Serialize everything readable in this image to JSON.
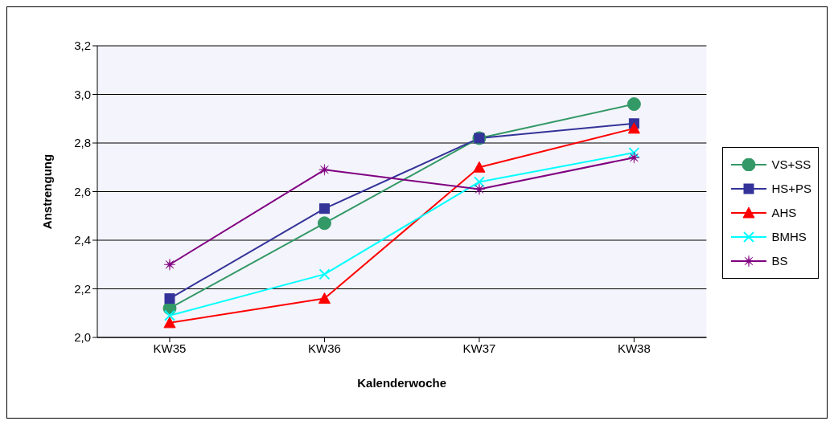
{
  "chart_data": {
    "type": "line",
    "xlabel": "Kalenderwoche",
    "ylabel": "Anstrengung",
    "categories": [
      "KW35",
      "KW36",
      "KW37",
      "KW38"
    ],
    "series": [
      {
        "name": "VS+SS",
        "color": "#339966",
        "marker": "circle",
        "values": [
          2.12,
          2.47,
          2.82,
          2.96
        ]
      },
      {
        "name": "HS+PS",
        "color": "#333399",
        "marker": "square",
        "values": [
          2.16,
          2.53,
          2.82,
          2.88
        ]
      },
      {
        "name": "AHS",
        "color": "#ff0000",
        "marker": "triangle",
        "values": [
          2.06,
          2.16,
          2.7,
          2.86
        ]
      },
      {
        "name": "BMHS",
        "color": "#00ffff",
        "marker": "cross",
        "values": [
          2.09,
          2.26,
          2.64,
          2.76
        ]
      },
      {
        "name": "BS",
        "color": "#800080",
        "marker": "star",
        "values": [
          2.3,
          2.69,
          2.61,
          2.74
        ]
      }
    ],
    "ylim": [
      2.0,
      3.2
    ],
    "yticks": [
      {
        "value": 2.0,
        "label": "2,0"
      },
      {
        "value": 2.2,
        "label": "2,2"
      },
      {
        "value": 2.4,
        "label": "2,4"
      },
      {
        "value": 2.6,
        "label": "2,6"
      },
      {
        "value": 2.8,
        "label": "2,8"
      },
      {
        "value": 3.0,
        "label": "3,0"
      },
      {
        "value": 3.2,
        "label": "3,2"
      }
    ],
    "grid": "y",
    "legend": "right",
    "line_style": "solid"
  }
}
